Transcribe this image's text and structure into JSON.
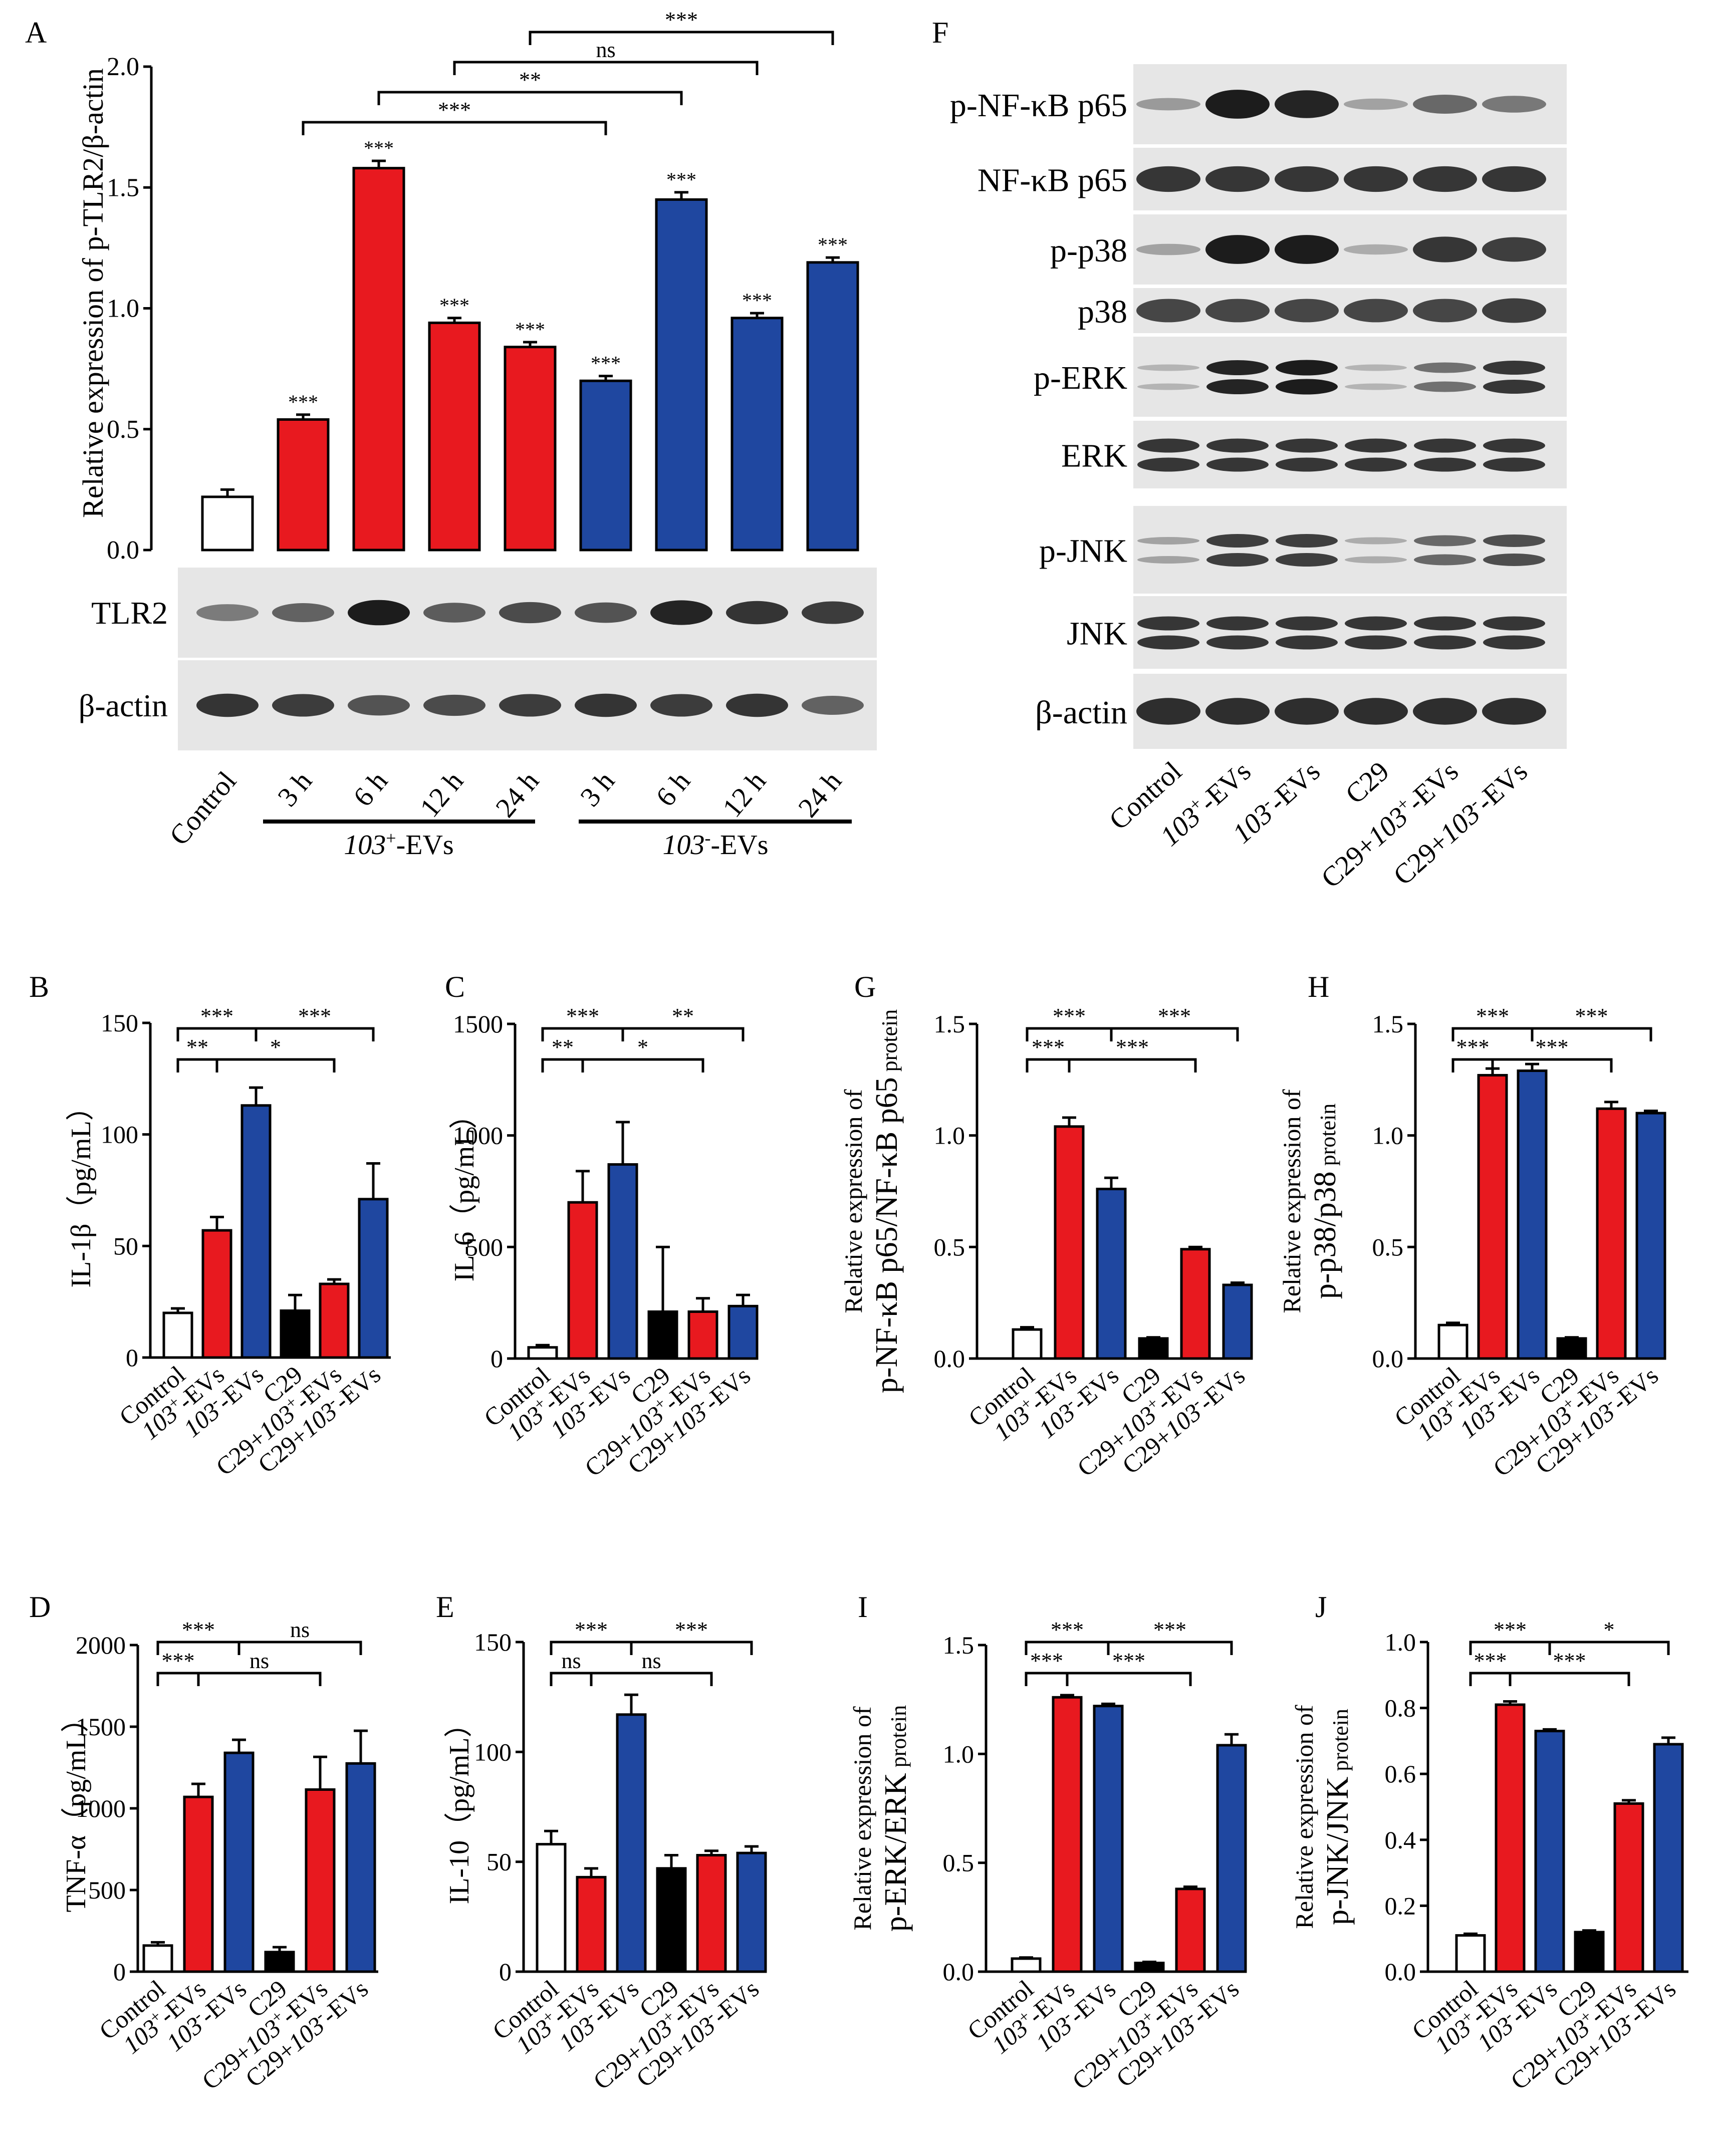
{
  "figure": {
    "panel_letters": {
      "A": "A",
      "B": "B",
      "C": "C",
      "D": "D",
      "E": "E",
      "F": "F",
      "G": "G",
      "H": "H",
      "I": "I",
      "J": "J"
    }
  },
  "colors": {
    "control": "#ffffff",
    "red": "#e8191f",
    "blue": "#1f47a0",
    "black": "#000000",
    "band": "#141414",
    "blot_bg": "#e6e6e6"
  },
  "groups": {
    "six": [
      {
        "label": "Control",
        "parts": [
          {
            "t": "Control",
            "i": false
          }
        ]
      },
      {
        "label": "103+-EVs",
        "parts": [
          {
            "t": "103",
            "i": true
          },
          {
            "t": "+",
            "i": false,
            "sup": true
          },
          {
            "t": "-EVs",
            "i": false
          }
        ]
      },
      {
        "label": "103--EVs",
        "parts": [
          {
            "t": "103",
            "i": true
          },
          {
            "t": "-",
            "i": false,
            "sup": true
          },
          {
            "t": "-EVs",
            "i": false
          }
        ]
      },
      {
        "label": "C29",
        "parts": [
          {
            "t": "C29",
            "i": false
          }
        ]
      },
      {
        "label": "C29+103+-EVs",
        "parts": [
          {
            "t": "C29+",
            "i": false
          },
          {
            "t": "103",
            "i": true
          },
          {
            "t": "+",
            "i": false,
            "sup": true
          },
          {
            "t": "-EVs",
            "i": false
          }
        ]
      },
      {
        "label": "C29+103--EVs",
        "parts": [
          {
            "t": "C29+",
            "i": false
          },
          {
            "t": "103",
            "i": true
          },
          {
            "t": "-",
            "i": false,
            "sup": true
          },
          {
            "t": "-EVs",
            "i": false
          }
        ]
      }
    ],
    "fill_keys": [
      "control",
      "red",
      "blue",
      "black",
      "red",
      "blue"
    ]
  },
  "panelA": {
    "ylabel": "Relative expression of p-TLR2/β-actin",
    "ylim": [
      0,
      2.0
    ],
    "yticks": [
      "0.0",
      "0.5",
      "1.0",
      "1.5",
      "2.0"
    ],
    "categories": [
      "Control",
      "3 h",
      "6 h",
      "12 h",
      "24 h",
      "3 h",
      "6 h",
      "12 h",
      "24 h"
    ],
    "values": [
      0.22,
      0.54,
      1.58,
      0.94,
      0.84,
      0.7,
      1.45,
      0.96,
      1.19
    ],
    "errors": [
      0.03,
      0.02,
      0.03,
      0.02,
      0.02,
      0.02,
      0.03,
      0.02,
      0.02
    ],
    "fill_keys": [
      "control",
      "red",
      "red",
      "red",
      "red",
      "blue",
      "blue",
      "blue",
      "blue"
    ],
    "stars": [
      "",
      "***",
      "***",
      "***",
      "***",
      "***",
      "***",
      "***",
      "***"
    ],
    "brackets": [
      {
        "from": 1,
        "to": 5,
        "label": "***",
        "level": 0
      },
      {
        "from": 2,
        "to": 6,
        "label": "**",
        "level": 1
      },
      {
        "from": 3,
        "to": 7,
        "label": "ns",
        "level": 2
      },
      {
        "from": 4,
        "to": 8,
        "label": "***",
        "level": 3
      }
    ],
    "group_labels": [
      {
        "parts": [
          {
            "t": "103",
            "i": true
          },
          {
            "t": "+",
            "i": false,
            "sup": true
          },
          {
            "t": "-EVs",
            "i": false
          }
        ],
        "text": "103+-EVs"
      },
      {
        "parts": [
          {
            "t": "103",
            "i": true
          },
          {
            "t": "-",
            "i": false,
            "sup": true
          },
          {
            "t": "-EVs",
            "i": false
          }
        ],
        "text": "103--EVs"
      }
    ],
    "blots": [
      {
        "label": "TLR2",
        "intensity": [
          0.35,
          0.5,
          0.95,
          0.55,
          0.65,
          0.6,
          0.9,
          0.8,
          0.75
        ]
      },
      {
        "label": "β-actin",
        "intensity": [
          0.8,
          0.75,
          0.6,
          0.65,
          0.75,
          0.8,
          0.75,
          0.8,
          0.5
        ]
      }
    ]
  },
  "panelF": {
    "rows": [
      {
        "label": "p-NF-κB p65",
        "intensity": [
          0.2,
          0.95,
          0.9,
          0.15,
          0.5,
          0.4
        ],
        "double": false
      },
      {
        "label": "NF-κB p65",
        "intensity": [
          0.8,
          0.8,
          0.8,
          0.8,
          0.8,
          0.8
        ],
        "double": false
      },
      {
        "label": "p-p38",
        "intensity": [
          0.15,
          0.95,
          0.95,
          0.1,
          0.8,
          0.75
        ],
        "double": false
      },
      {
        "label": "p38",
        "intensity": [
          0.7,
          0.7,
          0.7,
          0.7,
          0.7,
          0.75
        ],
        "double": false
      },
      {
        "label": "p-ERK",
        "intensity": [
          0.05,
          0.9,
          0.95,
          0.05,
          0.45,
          0.8
        ],
        "double": true
      },
      {
        "label": "ERK",
        "intensity": [
          0.8,
          0.8,
          0.8,
          0.8,
          0.8,
          0.8
        ],
        "double": true
      },
      {
        "label": "p-JNK",
        "intensity": [
          0.15,
          0.75,
          0.75,
          0.1,
          0.5,
          0.65
        ],
        "double": true
      },
      {
        "label": "JNK",
        "intensity": [
          0.8,
          0.8,
          0.8,
          0.8,
          0.8,
          0.8
        ],
        "double": true
      },
      {
        "label": "β-actin",
        "intensity": [
          0.85,
          0.85,
          0.85,
          0.85,
          0.85,
          0.85
        ],
        "double": false
      }
    ]
  },
  "chart_data": [
    {
      "id": "A",
      "type": "bar",
      "title": "",
      "xlabel": "",
      "ylabel": "Relative expression of p-TLR2/β-actin",
      "categories": [
        "Control",
        "103+-EVs 3 h",
        "103+-EVs 6 h",
        "103+-EVs 12 h",
        "103+-EVs 24 h",
        "103--EVs 3 h",
        "103--EVs 6 h",
        "103--EVs 12 h",
        "103--EVs 24 h"
      ],
      "values": [
        0.22,
        0.54,
        1.58,
        0.94,
        0.84,
        0.7,
        1.45,
        0.96,
        1.19
      ],
      "ylim": [
        0,
        2.0
      ]
    },
    {
      "id": "B",
      "type": "bar",
      "ylabel": "IL-1β（pg/mL）",
      "ylim": [
        0,
        150
      ],
      "yticks": [
        "0",
        "50",
        "100",
        "150"
      ],
      "categories": [
        "Control",
        "103+-EVs",
        "103--EVs",
        "C29",
        "C29+103+-EVs",
        "C29+103--EVs"
      ],
      "values": [
        20,
        57,
        113,
        21,
        33,
        71
      ],
      "errors": [
        2,
        6,
        8,
        7,
        2,
        16
      ],
      "brackets": [
        {
          "from": 0,
          "to": 1,
          "label": "**",
          "level": 0
        },
        {
          "from": 1,
          "to": 4,
          "label": "*",
          "level": 0
        },
        {
          "from": 0,
          "to": 2,
          "label": "***",
          "level": 1
        },
        {
          "from": 2,
          "to": 5,
          "label": "***",
          "level": 1
        }
      ]
    },
    {
      "id": "C",
      "type": "bar",
      "ylabel": "IL-6（pg/mL）",
      "ylim": [
        0,
        1500
      ],
      "yticks": [
        "0",
        "500",
        "1000",
        "1500"
      ],
      "categories": [
        "Control",
        "103+-EVs",
        "103--EVs",
        "C29",
        "C29+103+-EVs",
        "C29+103--EVs"
      ],
      "values": [
        50,
        700,
        870,
        210,
        210,
        235
      ],
      "errors": [
        10,
        140,
        190,
        290,
        60,
        50
      ],
      "brackets": [
        {
          "from": 0,
          "to": 1,
          "label": "**",
          "level": 0
        },
        {
          "from": 1,
          "to": 4,
          "label": "*",
          "level": 0
        },
        {
          "from": 0,
          "to": 2,
          "label": "***",
          "level": 1
        },
        {
          "from": 2,
          "to": 5,
          "label": "**",
          "level": 1
        }
      ]
    },
    {
      "id": "D",
      "type": "bar",
      "ylabel": "TNF-α（pg/mL）",
      "ylim": [
        0,
        2000
      ],
      "yticks": [
        "0",
        "500",
        "1000",
        "1500",
        "2000"
      ],
      "categories": [
        "Control",
        "103+-EVs",
        "103--EVs",
        "C29",
        "C29+103+-EVs",
        "C29+103--EVs"
      ],
      "values": [
        160,
        1070,
        1340,
        120,
        1115,
        1275
      ],
      "errors": [
        20,
        80,
        80,
        30,
        200,
        200
      ],
      "brackets": [
        {
          "from": 0,
          "to": 1,
          "label": "***",
          "level": 0
        },
        {
          "from": 1,
          "to": 4,
          "label": "ns",
          "level": 0
        },
        {
          "from": 0,
          "to": 2,
          "label": "***",
          "level": 1
        },
        {
          "from": 2,
          "to": 5,
          "label": "ns",
          "level": 1
        }
      ]
    },
    {
      "id": "E",
      "type": "bar",
      "ylabel": "IL-10（pg/mL）",
      "ylim": [
        0,
        150
      ],
      "yticks": [
        "0",
        "50",
        "100",
        "150"
      ],
      "categories": [
        "Control",
        "103+-EVs",
        "103--EVs",
        "C29",
        "C29+103+-EVs",
        "C29+103--EVs"
      ],
      "values": [
        58,
        43,
        117,
        47,
        53,
        54
      ],
      "errors": [
        6,
        4,
        9,
        6,
        2,
        3
      ],
      "brackets": [
        {
          "from": 0,
          "to": 1,
          "label": "ns",
          "level": 0
        },
        {
          "from": 1,
          "to": 4,
          "label": "ns",
          "level": 0
        },
        {
          "from": 0,
          "to": 2,
          "label": "***",
          "level": 1
        },
        {
          "from": 2,
          "to": 5,
          "label": "***",
          "level": 1
        }
      ]
    },
    {
      "id": "G",
      "type": "bar",
      "ylabel": "p-NF-κB p65/NF-κB p65",
      "ylabel_sub": "protein",
      "ylabel_top": "Relative expression of",
      "ylim": [
        0,
        1.5
      ],
      "yticks": [
        "0.0",
        "0.5",
        "1.0",
        "1.5"
      ],
      "categories": [
        "Control",
        "103+-EVs",
        "103--EVs",
        "C29",
        "C29+103+-EVs",
        "C29+103--EVs"
      ],
      "values": [
        0.13,
        1.04,
        0.76,
        0.09,
        0.49,
        0.33
      ],
      "errors": [
        0.01,
        0.04,
        0.05,
        0.005,
        0.01,
        0.01
      ],
      "brackets": [
        {
          "from": 0,
          "to": 1,
          "label": "***",
          "level": 0
        },
        {
          "from": 1,
          "to": 4,
          "label": "***",
          "level": 0
        },
        {
          "from": 0,
          "to": 2,
          "label": "***",
          "level": 1
        },
        {
          "from": 2,
          "to": 5,
          "label": "***",
          "level": 1
        }
      ]
    },
    {
      "id": "H",
      "type": "bar",
      "ylabel": "p-p38/p38",
      "ylabel_sub": "protein",
      "ylabel_top": "Relative expression of",
      "ylim": [
        0,
        1.5
      ],
      "yticks": [
        "0.0",
        "0.5",
        "1.0",
        "1.5"
      ],
      "categories": [
        "Control",
        "103+-EVs",
        "103--EVs",
        "C29",
        "C29+103+-EVs",
        "C29+103--EVs"
      ],
      "values": [
        0.15,
        1.27,
        1.29,
        0.09,
        1.12,
        1.1
      ],
      "errors": [
        0.01,
        0.03,
        0.03,
        0.005,
        0.03,
        0.01
      ],
      "brackets": [
        {
          "from": 0,
          "to": 1,
          "label": "***",
          "level": 0
        },
        {
          "from": 1,
          "to": 4,
          "label": "***",
          "level": 0
        },
        {
          "from": 0,
          "to": 2,
          "label": "***",
          "level": 1
        },
        {
          "from": 2,
          "to": 5,
          "label": "***",
          "level": 1
        }
      ]
    },
    {
      "id": "I",
      "type": "bar",
      "ylabel": "p-ERK/ERK",
      "ylabel_sub": "protein",
      "ylabel_top": "Relative expression of",
      "ylim": [
        0,
        1.5
      ],
      "yticks": [
        "0.0",
        "0.5",
        "1.0",
        "1.5"
      ],
      "categories": [
        "Control",
        "103+-EVs",
        "103--EVs",
        "C29",
        "C29+103+-EVs",
        "C29+103--EVs"
      ],
      "values": [
        0.06,
        1.26,
        1.22,
        0.04,
        0.38,
        1.04
      ],
      "errors": [
        0.005,
        0.01,
        0.01,
        0.005,
        0.01,
        0.05
      ],
      "brackets": [
        {
          "from": 0,
          "to": 1,
          "label": "***",
          "level": 0
        },
        {
          "from": 1,
          "to": 4,
          "label": "***",
          "level": 0
        },
        {
          "from": 0,
          "to": 2,
          "label": "***",
          "level": 1
        },
        {
          "from": 2,
          "to": 5,
          "label": "***",
          "level": 1
        }
      ]
    },
    {
      "id": "J",
      "type": "bar",
      "ylabel": "p-JNK/JNK",
      "ylabel_sub": "protein",
      "ylabel_top": "Relative expression of",
      "ylim": [
        0,
        1.0
      ],
      "yticks": [
        "0.0",
        "0.2",
        "0.4",
        "0.6",
        "0.8",
        "1.0"
      ],
      "categories": [
        "Control",
        "103+-EVs",
        "103--EVs",
        "C29",
        "C29+103+-EVs",
        "C29+103--EVs"
      ],
      "values": [
        0.11,
        0.81,
        0.73,
        0.12,
        0.51,
        0.69
      ],
      "errors": [
        0.005,
        0.01,
        0.005,
        0.005,
        0.01,
        0.02
      ],
      "brackets": [
        {
          "from": 0,
          "to": 1,
          "label": "***",
          "level": 0
        },
        {
          "from": 1,
          "to": 4,
          "label": "***",
          "level": 0
        },
        {
          "from": 0,
          "to": 2,
          "label": "***",
          "level": 1
        },
        {
          "from": 2,
          "to": 5,
          "label": "*",
          "level": 1
        }
      ]
    }
  ]
}
